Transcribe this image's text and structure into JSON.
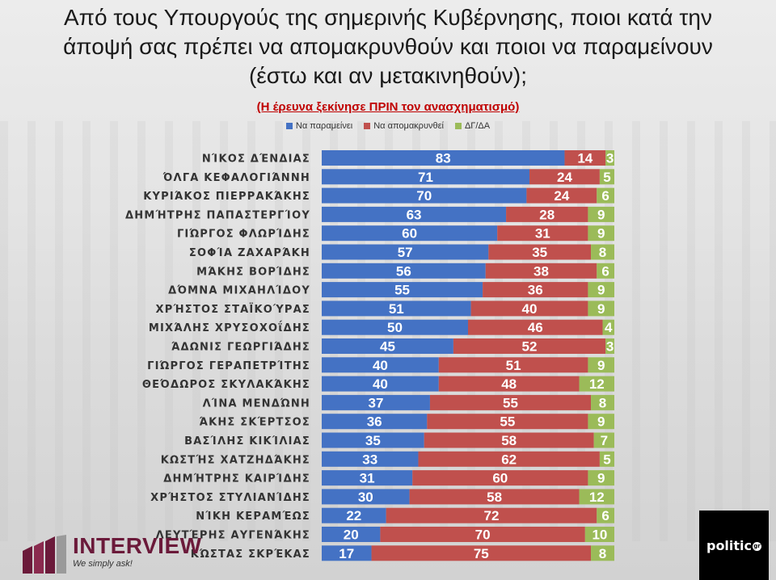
{
  "title_lines": [
    "Από τους Υπουργούς της σημερινής Κυβέρνησης, ποιοι κατά την",
    "άποψή σας πρέπει να απομακρυνθούν και ποιοι να παραμείνουν",
    "(έστω και αν μετακινηθούν);"
  ],
  "subtitle": "(Η έρευνα ξεκίνησε ΠΡΙΝ τον ανασχηματισμό)",
  "colors": {
    "stay": "#4472C4",
    "remove": "#C0504D",
    "dk": "#9BBB59"
  },
  "chart_data": {
    "type": "bar",
    "orientation": "horizontal",
    "stacked": true,
    "legend_position": "top",
    "xlim": [
      0,
      100
    ],
    "categories": [
      "ΝΊΚΟΣ ΔΈΝΔΙΑΣ",
      "ΌΛΓΑ ΚΕΦΑΛΟΓΙΆΝΝΗ",
      "ΚΥΡΙΆΚΟΣ ΠΙΕΡΡΑΚΆΚΗΣ",
      "ΔΗΜΉΤΡΗΣ ΠΑΠΑΣΤΕΡΓΊΟΥ",
      "ΓΙΏΡΓΟΣ ΦΛΩΡΊΔΗΣ",
      "ΣΟΦΊΑ ΖΑΧΑΡΆΚΗ",
      "ΜΆΚΗΣ ΒΟΡΊΔΗΣ",
      "ΔΌΜΝΑ ΜΙΧΑΗΛΊΔΟΥ",
      "ΧΡΉΣΤΟΣ ΣΤΑΪΚΟΎΡΑΣ",
      "ΜΙΧΆΛΗΣ ΧΡΥΣΟΧΟΐΔΗΣ",
      "ΆΔΩΝΙΣ ΓΕΩΡΓΙΆΔΗΣ",
      "ΓΙΏΡΓΟΣ ΓΕΡΑΠΕΤΡΊΤΗΣ",
      "ΘΕΌΔΩΡΟΣ ΣΚΥΛΑΚΆΚΗΣ",
      "ΛΊΝΑ ΜΕΝΔΏΝΗ",
      "ΆΚΗΣ ΣΚΈΡΤΣΟΣ",
      "ΒΑΣΊΛΗΣ ΚΙΚΊΛΙΑΣ",
      "ΚΩΣΤΉΣ ΧΑΤΖΗΔΆΚΗΣ",
      "ΔΗΜΉΤΡΗΣ ΚΑΙΡΊΔΗΣ",
      "ΧΡΉΣΤΟΣ ΣΤΥΛΙΑΝΊΔΗΣ",
      "ΝΊΚΗ ΚΕΡΑΜΈΩΣ",
      "ΛΕΥΤΈΡΗΣ ΑΥΓΕΝΆΚΗΣ",
      "ΚΏΣΤΑΣ ΣΚΡΈΚΑΣ"
    ],
    "series": [
      {
        "name": "Να παραμείνει",
        "color": "#4472C4",
        "values": [
          83,
          71,
          70,
          63,
          60,
          57,
          56,
          55,
          51,
          50,
          45,
          40,
          40,
          37,
          36,
          35,
          33,
          31,
          30,
          22,
          20,
          17
        ]
      },
      {
        "name": "Να απομακρυνθεί",
        "color": "#C0504D",
        "values": [
          14,
          24,
          24,
          28,
          31,
          35,
          38,
          36,
          40,
          46,
          52,
          51,
          48,
          55,
          55,
          58,
          62,
          60,
          58,
          72,
          70,
          75
        ]
      },
      {
        "name": "ΔΓ/ΔΑ",
        "color": "#9BBB59",
        "values": [
          3,
          5,
          6,
          9,
          9,
          8,
          6,
          9,
          9,
          4,
          3,
          9,
          12,
          8,
          9,
          7,
          5,
          9,
          12,
          6,
          10,
          8
        ]
      }
    ]
  },
  "logos": {
    "interview": {
      "brand": "INTERVIEW",
      "tagline": "We simply ask!"
    },
    "politic": {
      "text": "politic",
      "suffix": "gr"
    }
  }
}
